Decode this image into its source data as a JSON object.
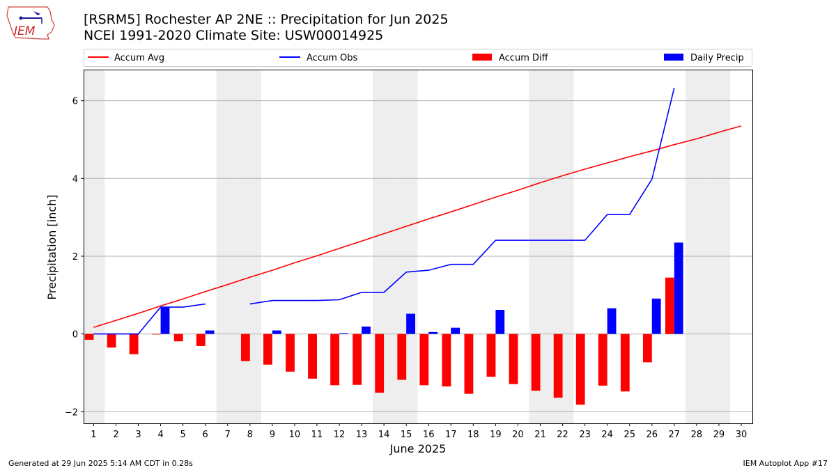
{
  "header": {
    "title_line1": "[RSRM5] Rochester AP 2NE :: Precipitation for Jun 2025",
    "title_line2": "NCEI 1991-2020 Climate Site: USW00014925",
    "logo_text": "IEM"
  },
  "footer": {
    "left": "Generated at 29 Jun 2025 5:14 AM CDT in 0.28s",
    "right": "IEM Autoplot App #17"
  },
  "colors": {
    "accum_avg": "#ff0000",
    "accum_obs": "#0000ff",
    "accum_diff": "#ff0000",
    "daily_precip": "#0000ff",
    "weekend_shade": "#eeeeee",
    "grid": "#b0b0b0"
  },
  "chart_data": {
    "type": "bar",
    "xlabel": "June 2025",
    "ylabel": "Precipitation [inch]",
    "ylim": [
      -2.3,
      6.8
    ],
    "yticks": [
      -2,
      0,
      2,
      4,
      6
    ],
    "x": [
      1,
      2,
      3,
      4,
      5,
      6,
      7,
      8,
      9,
      10,
      11,
      12,
      13,
      14,
      15,
      16,
      17,
      18,
      19,
      20,
      21,
      22,
      23,
      24,
      25,
      26,
      27,
      28,
      29,
      30
    ],
    "xtick_labels": [
      "1",
      "2",
      "3",
      "4",
      "5",
      "6",
      "7",
      "8",
      "9",
      "10",
      "11",
      "12",
      "13",
      "14",
      "15",
      "16",
      "17",
      "18",
      "19",
      "20",
      "21",
      "22",
      "23",
      "24",
      "25",
      "26",
      "27",
      "28",
      "29",
      "30"
    ],
    "weekend_days": [
      1,
      7,
      8,
      14,
      15,
      21,
      22,
      28,
      29
    ],
    "legend": [
      "Accum Avg",
      "Accum Obs",
      "Accum Diff",
      "Daily Precip"
    ],
    "legend_position": "top",
    "grid": "horizontal",
    "series": [
      {
        "name": "Accum Avg",
        "kind": "line",
        "values": [
          0.17,
          0.35,
          0.53,
          0.72,
          0.9,
          1.09,
          1.27,
          1.46,
          1.64,
          1.83,
          2.01,
          2.2,
          2.39,
          2.58,
          2.77,
          2.96,
          3.14,
          3.33,
          3.52,
          3.7,
          3.89,
          4.07,
          4.24,
          4.4,
          4.56,
          4.71,
          4.87,
          5.02,
          5.19,
          5.35
        ]
      },
      {
        "name": "Accum Obs",
        "kind": "line",
        "values": [
          0.0,
          0.0,
          0.0,
          0.69,
          0.69,
          0.77,
          null,
          0.77,
          0.86,
          0.86,
          0.86,
          0.88,
          1.07,
          1.07,
          1.59,
          1.64,
          1.79,
          1.79,
          2.41,
          2.41,
          2.41,
          2.41,
          2.41,
          3.07,
          3.07,
          3.98,
          6.33,
          null,
          null,
          null
        ]
      },
      {
        "name": "Accum Diff",
        "kind": "bar",
        "values": [
          -0.15,
          -0.35,
          -0.52,
          -0.01,
          -0.19,
          -0.31,
          null,
          -0.7,
          -0.79,
          -0.97,
          -1.15,
          -1.32,
          -1.31,
          -1.51,
          -1.18,
          -1.32,
          -1.35,
          -1.54,
          -1.1,
          -1.29,
          -1.46,
          -1.64,
          -1.82,
          -1.33,
          -1.48,
          -0.73,
          1.45,
          null,
          null,
          null
        ]
      },
      {
        "name": "Daily Precip",
        "kind": "bar",
        "values": [
          0.0,
          0.0,
          0.0,
          0.69,
          0.0,
          0.09,
          null,
          0.0,
          0.09,
          0.0,
          0.0,
          0.02,
          0.19,
          0.0,
          0.52,
          0.05,
          0.16,
          0.0,
          0.62,
          0.0,
          0.0,
          0.0,
          0.0,
          0.66,
          0.0,
          0.91,
          2.35,
          null,
          null,
          null
        ]
      }
    ]
  }
}
